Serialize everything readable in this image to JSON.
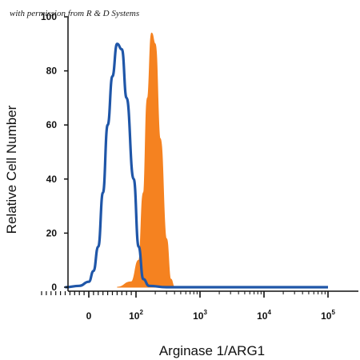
{
  "watermark": "with permission from R & D Systems",
  "chart_data": {
    "type": "area",
    "title": "",
    "xlabel": "Arginase 1/ARG1",
    "ylabel": "Relative Cell Number",
    "x_scale": "biexponential",
    "xtick_labels": [
      {
        "base": "0",
        "exp": ""
      },
      {
        "base": "10",
        "exp": "2"
      },
      {
        "base": "10",
        "exp": "3"
      },
      {
        "base": "10",
        "exp": "4"
      },
      {
        "base": "10",
        "exp": "5"
      }
    ],
    "y_ticks": [
      0,
      20,
      40,
      60,
      80,
      100
    ],
    "ylim": [
      0,
      105
    ],
    "grid": false,
    "legend": "none",
    "series": [
      {
        "style": "filled",
        "color": "#f58220",
        "x": [
          60,
          90,
          110,
          130,
          150,
          175,
          200,
          240,
          300,
          350,
          400
        ],
        "y": [
          0,
          2,
          10,
          35,
          70,
          94,
          90,
          55,
          18,
          3,
          0
        ]
      },
      {
        "style": "outline",
        "color": "#1f56a8",
        "x": [
          -50,
          -20,
          0,
          10,
          20,
          30,
          40,
          50,
          60,
          70,
          80,
          95,
          110,
          130,
          160,
          300,
          100000
        ],
        "y": [
          0,
          0.5,
          2,
          6,
          15,
          35,
          60,
          78,
          90,
          88,
          70,
          40,
          15,
          3,
          0.5,
          0,
          0
        ]
      }
    ]
  }
}
